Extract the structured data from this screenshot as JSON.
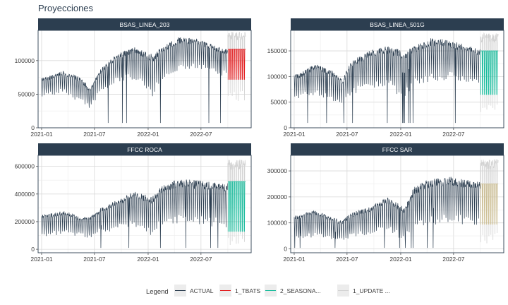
{
  "title": "Proyecciones",
  "colors": {
    "strip_bg": "#2c3e50",
    "grid": "#d9d9d9",
    "panel_border": "#2c3e50",
    "actual": "#2c3e50",
    "tbats": "#e31a1c",
    "seasonal": "#18bc9c",
    "update": "#ccbe93",
    "update_band": "#d3d3d3"
  },
  "legend": {
    "title": "Legend",
    "items": [
      {
        "label": "ACTUAL",
        "color": "#2c3e50"
      },
      {
        "label": "1_TBATS",
        "color": "#e31a1c"
      },
      {
        "label": "2_SEASONA...",
        "color": "#18bc9c"
      },
      {
        "label": "1_UPDATE ...",
        "color": "#d3d3d3"
      }
    ]
  },
  "chart_data": [
    {
      "type": "line",
      "title": "BSAS_LINEA_203",
      "x_ticks": [
        "2021-01",
        "2021-07",
        "2022-01",
        "2022-07"
      ],
      "y_ticks": [
        0,
        50000,
        100000
      ],
      "ylim": [
        0,
        145000
      ],
      "actual_x_range": [
        "2021-01-01",
        "2022-09-30"
      ],
      "forecast_x_range": [
        "2022-10-01",
        "2022-12-01"
      ],
      "forecast_model": "1_TBATS",
      "forecast_color": "#e31a1c",
      "forecast_high": 117000,
      "forecast_low": 72000,
      "band_high": 143000,
      "band_low": 40000,
      "actual_trend": [
        {
          "x": "2021-01",
          "high": 75000,
          "low": 45000
        },
        {
          "x": "2021-03",
          "high": 85000,
          "low": 50000
        },
        {
          "x": "2021-05",
          "high": 75000,
          "low": 35000
        },
        {
          "x": "2021-06",
          "high": 60000,
          "low": 25000
        },
        {
          "x": "2021-07",
          "high": 85000,
          "low": 45000
        },
        {
          "x": "2021-09",
          "high": 110000,
          "low": 65000
        },
        {
          "x": "2021-11",
          "high": 120000,
          "low": 70000
        },
        {
          "x": "2022-01",
          "high": 110000,
          "low": 40000
        },
        {
          "x": "2022-02",
          "high": 120000,
          "low": 65000
        },
        {
          "x": "2022-04",
          "high": 135000,
          "low": 80000
        },
        {
          "x": "2022-06",
          "high": 133000,
          "low": 85000
        },
        {
          "x": "2022-09",
          "high": 118000,
          "low": 75000
        }
      ]
    },
    {
      "type": "line",
      "title": "BSAS_LINEA_501G",
      "x_ticks": [
        "2021-01",
        "2021-07",
        "2022-01",
        "2022-07"
      ],
      "y_ticks": [
        0,
        50000,
        100000,
        150000
      ],
      "ylim": [
        0,
        190000
      ],
      "actual_x_range": [
        "2021-01-01",
        "2022-09-30"
      ],
      "forecast_x_range": [
        "2022-10-01",
        "2022-12-01"
      ],
      "forecast_model": "2_SEASONA...",
      "forecast_color": "#18bc9c",
      "forecast_high": 150000,
      "forecast_low": 65000,
      "band_high": 185000,
      "band_low": 30000,
      "actual_trend": [
        {
          "x": "2021-01",
          "high": 105000,
          "low": 55000
        },
        {
          "x": "2021-03",
          "high": 125000,
          "low": 60000
        },
        {
          "x": "2021-05",
          "high": 110000,
          "low": 45000
        },
        {
          "x": "2021-06",
          "high": 95000,
          "low": 40000
        },
        {
          "x": "2021-07",
          "high": 130000,
          "low": 60000
        },
        {
          "x": "2021-09",
          "high": 150000,
          "low": 70000
        },
        {
          "x": "2021-11",
          "high": 160000,
          "low": 75000
        },
        {
          "x": "2022-01",
          "high": 150000,
          "low": 50000
        },
        {
          "x": "2022-02",
          "high": 160000,
          "low": 80000
        },
        {
          "x": "2022-04",
          "high": 175000,
          "low": 85000
        },
        {
          "x": "2022-06",
          "high": 172000,
          "low": 90000
        },
        {
          "x": "2022-09",
          "high": 155000,
          "low": 80000
        }
      ]
    },
    {
      "type": "line",
      "title": "FFCC ROCA",
      "x_ticks": [
        "2021-01",
        "2021-07",
        "2022-01",
        "2022-07"
      ],
      "y_ticks": [
        0,
        200000,
        400000,
        600000
      ],
      "ylim": [
        -25000,
        680000
      ],
      "actual_x_range": [
        "2021-01-01",
        "2022-09-30"
      ],
      "forecast_x_range": [
        "2022-10-01",
        "2022-12-01"
      ],
      "forecast_model": "2_SEASONA...",
      "forecast_color": "#18bc9c",
      "forecast_high": 490000,
      "forecast_low": 130000,
      "band_high": 650000,
      "band_low": 30000,
      "actual_trend": [
        {
          "x": "2021-01",
          "high": 250000,
          "low": 80000
        },
        {
          "x": "2021-03",
          "high": 280000,
          "low": 100000
        },
        {
          "x": "2021-05",
          "high": 240000,
          "low": 80000
        },
        {
          "x": "2021-06",
          "high": 230000,
          "low": 70000
        },
        {
          "x": "2021-07",
          "high": 290000,
          "low": 100000
        },
        {
          "x": "2021-09",
          "high": 360000,
          "low": 130000
        },
        {
          "x": "2021-11",
          "high": 420000,
          "low": 150000
        },
        {
          "x": "2022-01",
          "high": 380000,
          "low": 80000
        },
        {
          "x": "2022-02",
          "high": 460000,
          "low": 160000
        },
        {
          "x": "2022-04",
          "high": 510000,
          "low": 170000
        },
        {
          "x": "2022-06",
          "high": 500000,
          "low": 160000
        },
        {
          "x": "2022-09",
          "high": 480000,
          "low": 140000
        }
      ]
    },
    {
      "type": "line",
      "title": "FFCC SAR",
      "x_ticks": [
        "2021-01",
        "2021-07",
        "2022-01",
        "2022-07"
      ],
      "y_ticks": [
        0,
        100000,
        200000,
        300000
      ],
      "ylim": [
        -15000,
        360000
      ],
      "actual_x_range": [
        "2021-01-01",
        "2022-09-30"
      ],
      "forecast_x_range": [
        "2022-10-01",
        "2022-12-01"
      ],
      "forecast_model": "1_UPDATE ...",
      "forecast_color": "#ccbe93",
      "forecast_high": 250000,
      "forecast_low": 95000,
      "band_high": 345000,
      "band_low": 20000,
      "actual_trend": [
        {
          "x": "2021-01",
          "high": 130000,
          "low": 30000
        },
        {
          "x": "2021-03",
          "high": 150000,
          "low": 40000
        },
        {
          "x": "2021-05",
          "high": 120000,
          "low": 30000
        },
        {
          "x": "2021-06",
          "high": 110000,
          "low": 20000
        },
        {
          "x": "2021-07",
          "high": 140000,
          "low": 40000
        },
        {
          "x": "2021-09",
          "high": 160000,
          "low": 50000
        },
        {
          "x": "2021-11",
          "high": 200000,
          "low": 60000
        },
        {
          "x": "2022-01",
          "high": 160000,
          "low": 20000
        },
        {
          "x": "2022-02",
          "high": 240000,
          "low": 70000
        },
        {
          "x": "2022-04",
          "high": 270000,
          "low": 80000
        },
        {
          "x": "2022-06",
          "high": 280000,
          "low": 90000
        },
        {
          "x": "2022-09",
          "high": 260000,
          "low": 80000
        }
      ]
    }
  ]
}
